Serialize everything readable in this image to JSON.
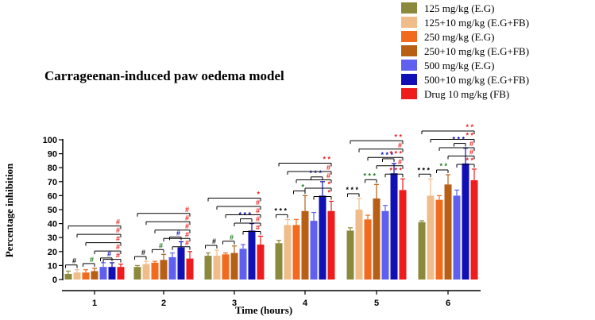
{
  "chart_data": {
    "type": "bar",
    "title": "Carrageenan-induced paw oedema model",
    "xlabel": "Time (hours)",
    "ylabel": "Percentage inhibition",
    "ylim": [
      0,
      100
    ],
    "yticks": [
      0,
      10,
      20,
      30,
      40,
      50,
      60,
      70,
      80,
      90,
      100
    ],
    "categories": [
      "1",
      "2",
      "3",
      "4",
      "5",
      "6"
    ],
    "legend_position": "top-right",
    "series": [
      {
        "name": "125 mg/kg (E.G)",
        "color": "#8b8a3c",
        "values": [
          4,
          9,
          17,
          26,
          35,
          41
        ],
        "errors": [
          2,
          1,
          2,
          2,
          2,
          1
        ]
      },
      {
        "name": "125+10 mg/kg (E.G+FB)",
        "color": "#efbc8a",
        "values": [
          5,
          11,
          17,
          39,
          50,
          60
        ],
        "errors": [
          2,
          2,
          4,
          4,
          8,
          12
        ]
      },
      {
        "name": "250 mg/kg (E.G)",
        "color": "#f26a1e",
        "values": [
          5,
          12,
          18,
          39,
          43,
          57
        ],
        "errors": [
          2,
          1,
          1,
          4,
          3,
          3
        ]
      },
      {
        "name": "250+10 mg/kg (E.G+FB)",
        "color": "#b85f16",
        "values": [
          6,
          14,
          19,
          49,
          58,
          68
        ],
        "errors": [
          2,
          4,
          5,
          11,
          10,
          7
        ]
      },
      {
        "name": "500 mg/kg (E.G)",
        "color": "#6060f0",
        "values": [
          9,
          16,
          22,
          42,
          49,
          60
        ],
        "errors": [
          3,
          3,
          3,
          6,
          4,
          4
        ]
      },
      {
        "name": "500+10 mg/kg (E.G+FB)",
        "color": "#1010b4",
        "values": [
          9,
          23,
          35,
          60,
          76,
          83
        ],
        "errors": [
          3,
          4,
          5,
          10,
          7,
          11
        ]
      },
      {
        "name": "Drug 10 mg/kg (FB)",
        "color": "#ee1c1c",
        "values": [
          9,
          15,
          25,
          49,
          64,
          71
        ],
        "errors": [
          2,
          5,
          6,
          7,
          8,
          8
        ]
      }
    ],
    "annotations": {
      "tick_pairs": [
        [
          [
            0,
            1,
            "#",
            "#000000"
          ],
          [
            2,
            3,
            "#",
            "#1a7a1a"
          ],
          [
            4,
            5,
            "#",
            "#1010b4"
          ]
        ],
        [
          [
            0,
            1,
            "#",
            "#000000"
          ],
          [
            2,
            3,
            "#",
            "#1a7a1a"
          ],
          [
            4,
            5,
            "#",
            "#1010b4"
          ]
        ],
        [
          [
            0,
            1,
            "#",
            "#000000"
          ],
          [
            2,
            3,
            "#",
            "#1a7a1a"
          ],
          [
            4,
            5,
            "* * *",
            "#1010b4"
          ]
        ],
        [
          [
            0,
            1,
            "* * *",
            "#000000"
          ],
          [
            2,
            3,
            "*",
            "#1a7a1a"
          ],
          [
            4,
            5,
            "* * *",
            "#1010b4"
          ]
        ],
        [
          [
            0,
            1,
            "* * *",
            "#000000"
          ],
          [
            2,
            3,
            "* * *",
            "#1a7a1a"
          ],
          [
            4,
            5,
            "* * *",
            "#1010b4"
          ]
        ],
        [
          [
            0,
            1,
            "* * *",
            "#000000"
          ],
          [
            2,
            3,
            "* *",
            "#1a7a1a"
          ],
          [
            4,
            5,
            "* * *",
            "#1010b4"
          ]
        ]
      ],
      "drug_comparisons": [
        [
          "#",
          "#",
          "#",
          "#",
          "#"
        ],
        [
          "#",
          "#",
          "#",
          "#",
          "#"
        ],
        [
          "#",
          "#",
          "#",
          "#",
          "*"
        ],
        [
          "*",
          "*",
          "#",
          "#",
          "* *"
        ],
        [
          "* * *",
          "#",
          "* * *",
          "#",
          "* *"
        ],
        [
          "* *",
          "#",
          "#",
          "* *",
          "* *"
        ]
      ]
    }
  }
}
